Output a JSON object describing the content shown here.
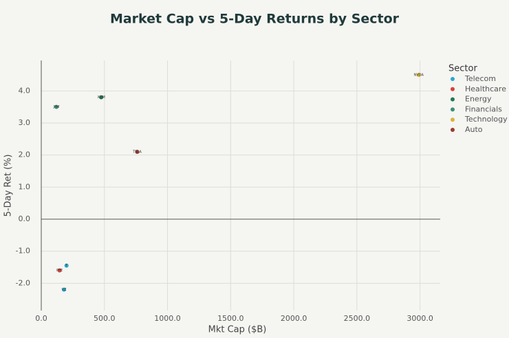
{
  "chart_data": {
    "type": "scatter",
    "title": "Market Cap vs 5-Day Returns by Sector",
    "x_label": "Mkt Cap ($B)",
    "y_label": "5-Day Ret (%)",
    "legend_title": "Sector",
    "xlim": [
      0,
      3160
    ],
    "ylim": [
      -2.85,
      4.95
    ],
    "xticks": [
      {
        "value": 0,
        "label": "0.0"
      },
      {
        "value": 500,
        "label": "500.0"
      },
      {
        "value": 1000,
        "label": "1000.0"
      },
      {
        "value": 1500,
        "label": "1500.0"
      },
      {
        "value": 2000,
        "label": "2000.0"
      },
      {
        "value": 2500,
        "label": "2500.0"
      },
      {
        "value": 3000,
        "label": "3000.0"
      }
    ],
    "yticks": [
      {
        "value": -2,
        "label": "-2.0"
      },
      {
        "value": -1,
        "label": "-1.0"
      },
      {
        "value": 0,
        "label": "0.0"
      },
      {
        "value": 1,
        "label": "1.0"
      },
      {
        "value": 2,
        "label": "2.0"
      },
      {
        "value": 3,
        "label": "3.0"
      },
      {
        "value": 4,
        "label": "4.0"
      }
    ],
    "grid": true,
    "legend": "right",
    "series": [
      {
        "name": "Telecom",
        "color": "#29a9c9",
        "x": [
          200,
          180
        ],
        "values": [
          -1.45,
          -2.2
        ],
        "labels": [
          "T",
          "VZ"
        ]
      },
      {
        "name": "Healthcare",
        "color": "#d9413a",
        "x": [
          145
        ],
        "values": [
          -1.6
        ],
        "labels": [
          "PFE"
        ]
      },
      {
        "name": "Energy",
        "color": "#1f7a55",
        "x": [
          475
        ],
        "values": [
          3.8
        ],
        "labels": [
          "XOM"
        ]
      },
      {
        "name": "Financials",
        "color": "#3a8f77",
        "x": [
          120
        ],
        "values": [
          3.5
        ],
        "labels": [
          "JPM"
        ]
      },
      {
        "name": "Technology",
        "color": "#d9b43a",
        "x": [
          2990
        ],
        "values": [
          4.5
        ],
        "labels": [
          "NVDA"
        ]
      },
      {
        "name": "Auto",
        "color": "#9b3b2e",
        "x": [
          760
        ],
        "values": [
          2.1
        ],
        "labels": [
          "TSLA"
        ]
      }
    ]
  }
}
